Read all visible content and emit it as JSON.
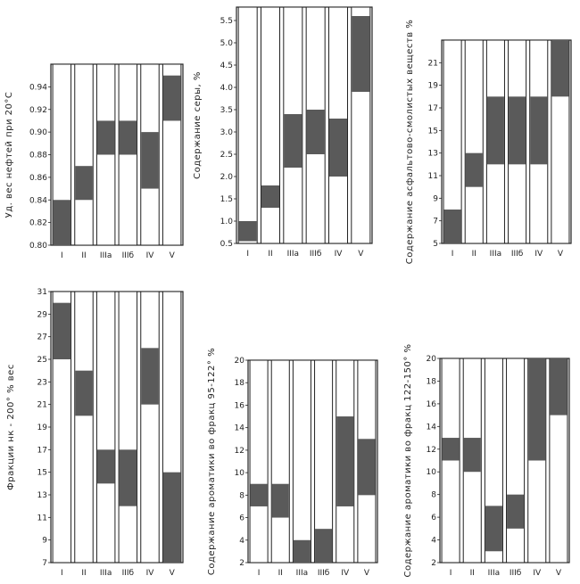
{
  "chart_data": [
    {
      "type": "bar",
      "subtype": "floating-range",
      "ylabel": "Уд. вес нефтей при 20°С",
      "ylim": [
        0.8,
        0.96
      ],
      "yticks": [
        "0.80",
        "0.82",
        "0.84",
        "0.86",
        "0.88",
        "0.90",
        "0.92",
        "0.94"
      ],
      "categories": [
        "I",
        "II",
        "IIIa",
        "IIIб",
        "IV",
        "V"
      ],
      "ranges": [
        [
          0.8,
          0.84
        ],
        [
          0.84,
          0.87
        ],
        [
          0.88,
          0.91
        ],
        [
          0.88,
          0.91
        ],
        [
          0.85,
          0.9
        ],
        [
          0.91,
          0.95
        ]
      ]
    },
    {
      "type": "bar",
      "subtype": "floating-range",
      "ylabel": "Содержание серы, %",
      "ylim": [
        0.5,
        5.8
      ],
      "yticks": [
        "0.5",
        "1.0",
        "1.5",
        "2.0",
        "2.5",
        "3.0",
        "3.5",
        "4.0",
        "4.5",
        "5.0",
        "5.5"
      ],
      "categories": [
        "I",
        "II",
        "IIIa",
        "IIIб",
        "IV",
        "V"
      ],
      "ranges": [
        [
          0.55,
          1.0
        ],
        [
          1.3,
          1.8
        ],
        [
          2.2,
          3.4
        ],
        [
          2.5,
          3.5
        ],
        [
          2.0,
          3.3
        ],
        [
          3.9,
          5.6
        ]
      ]
    },
    {
      "type": "bar",
      "subtype": "floating-range",
      "ylabel": "Содержание асфальтово-смолистых веществ %",
      "ylim": [
        5,
        23
      ],
      "yticks": [
        "5",
        "7",
        "9",
        "11",
        "13",
        "15",
        "17",
        "19",
        "21"
      ],
      "categories": [
        "I",
        "II",
        "IIIa",
        "IIIб",
        "IV",
        "V"
      ],
      "ranges": [
        [
          5,
          8
        ],
        [
          10,
          13
        ],
        [
          12,
          18
        ],
        [
          12,
          18
        ],
        [
          12,
          18
        ],
        [
          18,
          23
        ]
      ]
    },
    {
      "type": "bar",
      "subtype": "floating-range",
      "ylabel": "Фракции нк - 200° % вес",
      "ylim": [
        7,
        31
      ],
      "yticks": [
        "7",
        "9",
        "11",
        "13",
        "15",
        "17",
        "19",
        "21",
        "23",
        "25",
        "27",
        "29",
        "31"
      ],
      "categories": [
        "I",
        "II",
        "IIIa",
        "IIIб",
        "IV",
        "V"
      ],
      "ranges": [
        [
          25,
          30
        ],
        [
          20,
          24
        ],
        [
          14,
          17
        ],
        [
          12,
          17
        ],
        [
          21,
          26
        ],
        [
          7,
          15
        ]
      ]
    },
    {
      "type": "bar",
      "subtype": "floating-range",
      "ylabel": "Содержание ароматики во фракц 95-122° %",
      "ylim": [
        2,
        20
      ],
      "yticks": [
        "2",
        "4",
        "6",
        "8",
        "10",
        "12",
        "14",
        "16",
        "18",
        "20"
      ],
      "categories": [
        "I",
        "II",
        "IIIa",
        "IIIб",
        "IV",
        "V"
      ],
      "ranges": [
        [
          7,
          9
        ],
        [
          6,
          9
        ],
        [
          2,
          4
        ],
        [
          2,
          5
        ],
        [
          7,
          15
        ],
        [
          8,
          13
        ]
      ]
    },
    {
      "type": "bar",
      "subtype": "floating-range",
      "ylabel": "Содержание ароматики во фракц 122-150° %",
      "ylim": [
        2,
        20
      ],
      "yticks": [
        "2",
        "4",
        "6",
        "8",
        "10",
        "12",
        "14",
        "16",
        "18",
        "20"
      ],
      "categories": [
        "I",
        "II",
        "IIIa",
        "IIIб",
        "IV",
        "V"
      ],
      "ranges": [
        [
          11,
          13
        ],
        [
          10,
          13
        ],
        [
          3,
          7
        ],
        [
          5,
          8
        ],
        [
          11,
          20
        ],
        [
          15,
          20
        ]
      ]
    }
  ],
  "colors": {
    "bar_fill": "#5a5a5a",
    "outline": "#222222"
  }
}
